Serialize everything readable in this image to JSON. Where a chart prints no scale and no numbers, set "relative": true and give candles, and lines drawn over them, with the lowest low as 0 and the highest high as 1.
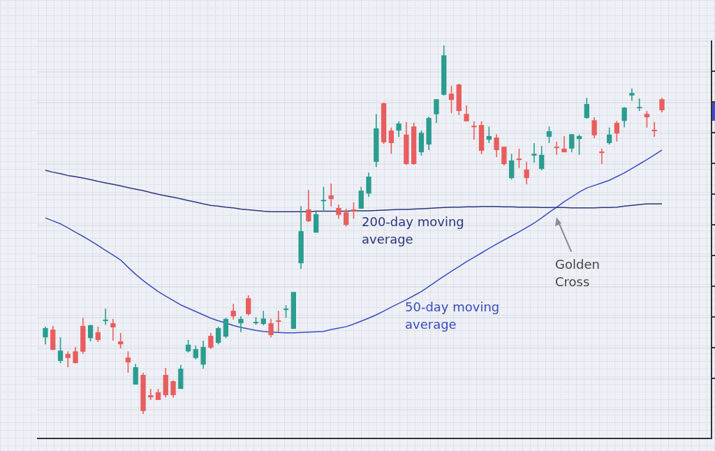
{
  "chart_data": {
    "type": "candlestick",
    "relative": true,
    "marker": "none",
    "categories": [
      null,
      null,
      null,
      null,
      null,
      null,
      null,
      null,
      null,
      null,
      null,
      null,
      null,
      null,
      null,
      null,
      null,
      null,
      null,
      null,
      null,
      null,
      null,
      null,
      null,
      null,
      null,
      null,
      null,
      null,
      null,
      null,
      null,
      null,
      null,
      null,
      null,
      null,
      null,
      null,
      null,
      null,
      null,
      null,
      null,
      null,
      null,
      null,
      null,
      null,
      null,
      null,
      null,
      null,
      null,
      null,
      null,
      null,
      null,
      null,
      null,
      null,
      null,
      null,
      null,
      null,
      null,
      null,
      null,
      null,
      null,
      null,
      null,
      null,
      null,
      null,
      null,
      null,
      null,
      null,
      null,
      null,
      null
    ],
    "ohlc": [
      [
        0.208,
        0.237,
        0.189,
        0.233
      ],
      [
        0.229,
        0.239,
        0.174,
        0.174
      ],
      [
        0.144,
        0.208,
        0.138,
        0.172
      ],
      [
        0.163,
        0.17,
        0.127,
        0.152
      ],
      [
        0.17,
        0.182,
        0.138,
        0.138
      ],
      [
        0.239,
        0.261,
        0.163,
        0.169
      ],
      [
        0.206,
        0.242,
        0.197,
        0.241
      ],
      [
        0.222,
        0.237,
        0.195,
        0.201
      ],
      [
        0.252,
        0.286,
        0.242,
        0.256
      ],
      [
        0.246,
        0.258,
        0.199,
        0.235
      ],
      [
        0.197,
        0.22,
        0.178,
        0.189
      ],
      [
        0.153,
        0.17,
        0.112,
        0.14
      ],
      [
        0.08,
        0.136,
        0.08,
        0.127
      ],
      [
        0.106,
        0.112,
        0,
        0.008
      ],
      [
        0.051,
        0.068,
        0.038,
        0.045
      ],
      [
        0.059,
        0.068,
        0.038,
        0.038
      ],
      [
        0.106,
        0.125,
        0.045,
        0.051
      ],
      [
        0.089,
        0.091,
        0.044,
        0.051
      ],
      [
        0.068,
        0.133,
        0.068,
        0.123
      ],
      [
        0.17,
        0.201,
        0.167,
        0.188
      ],
      [
        0.152,
        0.186,
        0.148,
        0.176
      ],
      [
        0.134,
        0.199,
        0.123,
        0.182
      ],
      [
        0.212,
        0.22,
        0.176,
        0.18
      ],
      [
        0.193,
        0.237,
        0.189,
        0.233
      ],
      [
        0.21,
        0.261,
        0.206,
        0.258
      ],
      [
        0.28,
        0.299,
        0.256,
        0.265
      ],
      [
        0.246,
        0.265,
        0.222,
        0.258
      ],
      [
        0.314,
        0.322,
        0.267,
        0.271
      ],
      [
        0.246,
        0.263,
        0.242,
        0.25
      ],
      [
        0.244,
        0.28,
        0.241,
        0.259
      ],
      [
        0.246,
        0.258,
        0.208,
        0.214
      ],
      [
        0.254,
        0.28,
        0.223,
        0.25
      ],
      [
        0.284,
        0.295,
        0.261,
        0.286
      ],
      [
        0.231,
        0.331,
        0.231,
        0.331
      ],
      [
        0.409,
        0.564,
        0.394,
        0.496
      ],
      [
        0.555,
        0.608,
        0.521,
        0.523
      ],
      [
        0.492,
        0.549,
        0.492,
        0.542
      ],
      [
        0.58,
        0.616,
        0.549,
        0.581
      ],
      [
        0.593,
        0.625,
        0.563,
        0.583
      ],
      [
        0.559,
        0.568,
        0.53,
        0.54
      ],
      [
        0.547,
        0.557,
        0.509,
        0.513
      ],
      [
        0.555,
        0.574,
        0.53,
        0.549
      ],
      [
        0.557,
        0.616,
        0.557,
        0.606
      ],
      [
        0.598,
        0.655,
        0.589,
        0.644
      ],
      [
        0.684,
        0.814,
        0.67,
        0.775
      ],
      [
        0.843,
        0.845,
        0.733,
        0.737
      ],
      [
        0.769,
        0.777,
        0.706,
        0.735
      ],
      [
        0.769,
        0.794,
        0.752,
        0.788
      ],
      [
        0.758,
        0.792,
        0.676,
        0.678
      ],
      [
        0.78,
        0.79,
        0.676,
        0.678
      ],
      [
        0.71,
        0.769,
        0.701,
        0.763
      ],
      [
        0.731,
        0.807,
        0.716,
        0.803
      ],
      [
        0.813,
        0.854,
        0.79,
        0.854
      ],
      [
        0.866,
        1,
        0.864,
        0.973
      ],
      [
        0.869,
        0.89,
        0.816,
        0.852
      ],
      [
        0.894,
        0.896,
        0.811,
        0.822
      ],
      [
        0.814,
        0.837,
        0.794,
        0.794
      ],
      [
        0.782,
        0.794,
        0.744,
        0.778
      ],
      [
        0.784,
        0.794,
        0.705,
        0.714
      ],
      [
        0.744,
        0.78,
        0.735,
        0.754
      ],
      [
        0.75,
        0.759,
        0.697,
        0.716
      ],
      [
        0.725,
        0.725,
        0.674,
        0.678
      ],
      [
        0.64,
        0.706,
        0.636,
        0.688
      ],
      [
        0.693,
        0.72,
        0.667,
        0.689
      ],
      [
        0.663,
        0.684,
        0.623,
        0.64
      ],
      [
        0.701,
        0.735,
        0.682,
        0.706
      ],
      [
        0.665,
        0.727,
        0.661,
        0.703
      ],
      [
        0.752,
        0.78,
        0.735,
        0.767
      ],
      [
        0.725,
        0.739,
        0.703,
        0.722
      ],
      [
        0.72,
        0.754,
        0.71,
        0.71
      ],
      [
        0.72,
        0.759,
        0.71,
        0.759
      ],
      [
        0.746,
        0.758,
        0.703,
        0.754
      ],
      [
        0.803,
        0.858,
        0.801,
        0.841
      ],
      [
        0.797,
        0.805,
        0.748,
        0.756
      ],
      [
        0.712,
        0.72,
        0.678,
        0.708
      ],
      [
        0.735,
        0.777,
        0.731,
        0.758
      ],
      [
        0.79,
        0.795,
        0.739,
        0.761
      ],
      [
        0.795,
        0.833,
        0.778,
        0.831
      ],
      [
        0.864,
        0.883,
        0.85,
        0.871
      ],
      [
        0.831,
        0.856,
        0.822,
        0.833
      ],
      [
        0.814,
        0.822,
        0.777,
        0.805
      ],
      [
        0.771,
        0.792,
        0.752,
        0.767
      ],
      [
        0.854,
        0.858,
        0.818,
        0.824
      ]
    ],
    "colors": [
      "#2a9d8f",
      "#e85d5d",
      "#2a9d8f",
      "#e85d5d",
      "#e85d5d",
      "#e85d5d",
      "#2a9d8f",
      "#e85d5d",
      "#2a9d8f",
      "#e85d5d",
      "#e85d5d",
      "#e85d5d",
      "#2a9d8f",
      "#e85d5d",
      "#e85d5d",
      "#e85d5d",
      "#e85d5d",
      "#e85d5d",
      "#2a9d8f",
      "#2a9d8f",
      "#2a9d8f",
      "#2a9d8f",
      "#e85d5d",
      "#2a9d8f",
      "#2a9d8f",
      "#e85d5d",
      "#2a9d8f",
      "#e85d5d",
      "#2a9d8f",
      "#2a9d8f",
      "#e85d5d",
      "#e85d5d",
      "#2a9d8f",
      "#2a9d8f",
      "#2a9d8f",
      "#e85d5d",
      "#2a9d8f",
      "#2a9d8f",
      "#e85d5d",
      "#e85d5d",
      "#e85d5d",
      "#e85d5d",
      "#2a9d8f",
      "#2a9d8f",
      "#2a9d8f",
      "#e85d5d",
      "#e85d5d",
      "#2a9d8f",
      "#e85d5d",
      "#e85d5d",
      "#2a9d8f",
      "#2a9d8f",
      "#2a9d8f",
      "#2a9d8f",
      "#e85d5d",
      "#e85d5d",
      "#e85d5d",
      "#e85d5d",
      "#e85d5d",
      "#2a9d8f",
      "#e85d5d",
      "#e85d5d",
      "#2a9d8f",
      "#e85d5d",
      "#e85d5d",
      "#2a9d8f",
      "#2a9d8f",
      "#2a9d8f",
      "#e85d5d",
      "#e85d5d",
      "#2a9d8f",
      "#2a9d8f",
      "#2a9d8f",
      "#e85d5d",
      "#e85d5d",
      "#2a9d8f",
      "#e85d5d",
      "#2a9d8f",
      "#2a9d8f",
      "#2a9d8f",
      "#e85d5d",
      "#e85d5d",
      "#e85d5d"
    ],
    "series": [
      {
        "name": "200-day moving average",
        "type": "line",
        "color": "#2b3680",
        "values": [
          0.661,
          0.656,
          0.652,
          0.647,
          0.644,
          0.64,
          0.636,
          0.631,
          0.627,
          0.623,
          0.619,
          0.614,
          0.61,
          0.606,
          0.601,
          0.596,
          0.592,
          0.588,
          0.584,
          0.579,
          0.575,
          0.57,
          0.566,
          0.564,
          0.561,
          0.559,
          0.556,
          0.554,
          0.552,
          0.55,
          0.549,
          0.549,
          0.549,
          0.549,
          0.549,
          0.549,
          0.55,
          0.55,
          0.55,
          0.55,
          0.55,
          0.551,
          0.551,
          0.551,
          0.552,
          0.553,
          0.554,
          0.555,
          0.555,
          0.556,
          0.557,
          0.558,
          0.559,
          0.56,
          0.561,
          0.561,
          0.562,
          0.562,
          0.563,
          0.563,
          0.563,
          0.562,
          0.562,
          0.561,
          0.561,
          0.561,
          0.56,
          0.56,
          0.56,
          0.56,
          0.559,
          0.559,
          0.559,
          0.559,
          0.56,
          0.56,
          0.561,
          0.564,
          0.566,
          0.568,
          0.57,
          0.57,
          0.57
        ]
      },
      {
        "name": "50-day moving average",
        "type": "line",
        "color": "#3b4cc0",
        "values": [
          0.532,
          0.524,
          0.516,
          0.505,
          0.493,
          0.482,
          0.47,
          0.457,
          0.444,
          0.431,
          0.418,
          0.398,
          0.379,
          0.362,
          0.347,
          0.332,
          0.32,
          0.308,
          0.296,
          0.287,
          0.278,
          0.269,
          0.26,
          0.253,
          0.247,
          0.24,
          0.235,
          0.231,
          0.227,
          0.224,
          0.222,
          0.221,
          0.22,
          0.22,
          0.221,
          0.222,
          0.223,
          0.224,
          0.229,
          0.233,
          0.237,
          0.244,
          0.252,
          0.26,
          0.269,
          0.279,
          0.29,
          0.3,
          0.31,
          0.321,
          0.332,
          0.346,
          0.36,
          0.374,
          0.387,
          0.4,
          0.413,
          0.425,
          0.437,
          0.449,
          0.461,
          0.472,
          0.483,
          0.494,
          0.506,
          0.518,
          0.532,
          0.547,
          0.561,
          0.576,
          0.589,
          0.602,
          0.613,
          0.62,
          0.627,
          0.634,
          0.644,
          0.654,
          0.666,
          0.678,
          0.69,
          0.703,
          0.716
        ]
      }
    ],
    "annotations": [
      "Golden Cross"
    ]
  }
}
